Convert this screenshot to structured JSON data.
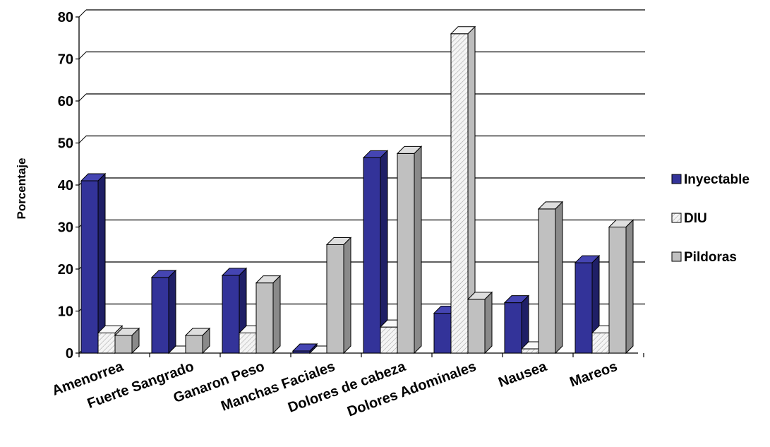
{
  "chart_data": {
    "type": "bar",
    "title": "",
    "xlabel": "",
    "ylabel": "Porcentaje",
    "ylim": [
      0,
      80
    ],
    "yticks": [
      0,
      10,
      20,
      30,
      40,
      50,
      60,
      70,
      80
    ],
    "grid": true,
    "legend_position": "right",
    "categories": [
      "Amenorrea",
      "Fuerte Sangrado",
      "Ganaron Peso",
      "Manchas Faciales",
      "Dolores de cabeza",
      "Dolores Adominales",
      "Nausea",
      "Mareos"
    ],
    "series": [
      {
        "name": "Inyectable",
        "values": [
          41,
          18,
          18.5,
          0.5,
          46.5,
          9.5,
          12,
          21.5
        ]
      },
      {
        "name": "DIU",
        "values": [
          4.8,
          0,
          4.8,
          0,
          6.2,
          76,
          1,
          4.8
        ]
      },
      {
        "name": "Pildoras",
        "values": [
          4.2,
          4.2,
          16.7,
          25.8,
          47.5,
          12.8,
          34.3,
          30
        ]
      }
    ]
  },
  "colors": {
    "Inyectable": "#333399",
    "DIU": "#ececec",
    "Pildoras": "#c0c0c0"
  }
}
